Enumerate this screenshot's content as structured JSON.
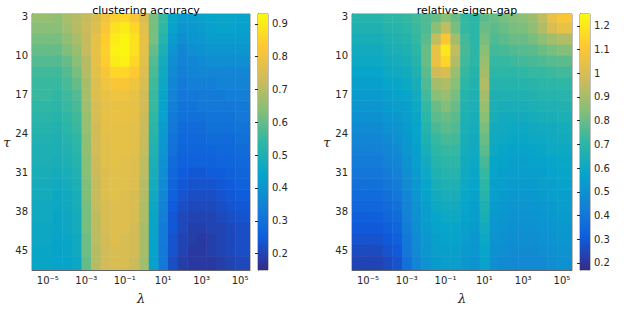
{
  "chart_data": [
    {
      "type": "heatmap",
      "title": "clustering accuracy",
      "x_label": "λ",
      "y_label": "τ",
      "log": "x",
      "x": [
        1e-05,
        3.16e-05,
        0.0001,
        0.000316,
        0.001,
        0.00316,
        0.01,
        0.0316,
        0.1,
        0.316,
        1,
        3.16,
        10,
        31.6,
        100,
        316,
        1000,
        3160,
        10000,
        31600,
        100000
      ],
      "y": [
        3,
        5,
        7,
        9,
        11,
        13,
        15,
        17,
        19,
        21,
        23,
        25,
        27,
        29,
        31,
        33,
        35,
        37,
        39,
        41,
        43,
        45,
        47
      ],
      "xlim": [
        1.5e-06,
        330000
      ],
      "ylim": [
        2.5,
        48.5
      ],
      "xticks": [
        {
          "value": 1e-05,
          "label": "10⁻⁵"
        },
        {
          "value": 0.001,
          "label": "10⁻³"
        },
        {
          "value": 0.1,
          "label": "10⁻¹"
        },
        {
          "value": 10,
          "label": "10¹"
        },
        {
          "value": 1000,
          "label": "10³"
        },
        {
          "value": 100000,
          "label": "10⁵"
        }
      ],
      "yticks": [
        3,
        10,
        17,
        24,
        31,
        38,
        45
      ],
      "cells": [
        [
          0.66,
          0.65,
          0.68,
          0.7,
          0.72,
          0.75,
          0.8,
          0.85,
          0.86,
          0.82,
          0.75,
          0.62,
          0.55,
          0.45,
          0.42,
          0.42,
          0.43,
          0.44,
          0.45,
          0.45,
          0.44
        ],
        [
          0.64,
          0.64,
          0.67,
          0.7,
          0.73,
          0.76,
          0.82,
          0.88,
          0.9,
          0.86,
          0.77,
          0.62,
          0.54,
          0.44,
          0.4,
          0.41,
          0.42,
          0.43,
          0.44,
          0.44,
          0.43
        ],
        [
          0.62,
          0.62,
          0.65,
          0.68,
          0.72,
          0.78,
          0.84,
          0.9,
          0.92,
          0.88,
          0.78,
          0.62,
          0.52,
          0.42,
          0.38,
          0.4,
          0.41,
          0.42,
          0.42,
          0.42,
          0.42
        ],
        [
          0.6,
          0.6,
          0.63,
          0.66,
          0.72,
          0.78,
          0.85,
          0.91,
          0.92,
          0.88,
          0.78,
          0.6,
          0.5,
          0.4,
          0.36,
          0.38,
          0.39,
          0.4,
          0.4,
          0.4,
          0.4
        ],
        [
          0.58,
          0.58,
          0.6,
          0.64,
          0.7,
          0.78,
          0.84,
          0.9,
          0.91,
          0.86,
          0.77,
          0.58,
          0.48,
          0.38,
          0.35,
          0.36,
          0.37,
          0.38,
          0.38,
          0.38,
          0.38
        ],
        [
          0.56,
          0.56,
          0.58,
          0.62,
          0.7,
          0.77,
          0.82,
          0.86,
          0.86,
          0.83,
          0.76,
          0.57,
          0.47,
          0.37,
          0.34,
          0.35,
          0.36,
          0.36,
          0.36,
          0.36,
          0.36
        ],
        [
          0.55,
          0.55,
          0.57,
          0.6,
          0.68,
          0.76,
          0.8,
          0.82,
          0.82,
          0.8,
          0.75,
          0.56,
          0.46,
          0.36,
          0.33,
          0.34,
          0.34,
          0.34,
          0.35,
          0.35,
          0.35
        ],
        [
          0.55,
          0.54,
          0.56,
          0.58,
          0.68,
          0.76,
          0.79,
          0.8,
          0.8,
          0.79,
          0.74,
          0.55,
          0.45,
          0.35,
          0.32,
          0.32,
          0.33,
          0.33,
          0.33,
          0.34,
          0.34
        ],
        [
          0.54,
          0.53,
          0.55,
          0.57,
          0.67,
          0.75,
          0.78,
          0.79,
          0.79,
          0.78,
          0.74,
          0.55,
          0.44,
          0.34,
          0.31,
          0.31,
          0.32,
          0.32,
          0.32,
          0.32,
          0.33
        ],
        [
          0.53,
          0.52,
          0.54,
          0.56,
          0.66,
          0.75,
          0.78,
          0.79,
          0.79,
          0.78,
          0.73,
          0.54,
          0.43,
          0.33,
          0.3,
          0.3,
          0.3,
          0.31,
          0.31,
          0.31,
          0.32
        ],
        [
          0.52,
          0.51,
          0.53,
          0.55,
          0.66,
          0.74,
          0.78,
          0.78,
          0.78,
          0.77,
          0.73,
          0.53,
          0.42,
          0.32,
          0.29,
          0.29,
          0.29,
          0.3,
          0.3,
          0.3,
          0.31
        ],
        [
          0.51,
          0.5,
          0.52,
          0.54,
          0.65,
          0.74,
          0.77,
          0.78,
          0.78,
          0.77,
          0.72,
          0.52,
          0.41,
          0.31,
          0.28,
          0.28,
          0.28,
          0.29,
          0.29,
          0.29,
          0.3
        ],
        [
          0.5,
          0.5,
          0.51,
          0.53,
          0.65,
          0.74,
          0.77,
          0.78,
          0.78,
          0.77,
          0.72,
          0.51,
          0.4,
          0.3,
          0.27,
          0.27,
          0.27,
          0.27,
          0.28,
          0.28,
          0.29
        ],
        [
          0.5,
          0.49,
          0.5,
          0.52,
          0.64,
          0.73,
          0.77,
          0.78,
          0.77,
          0.76,
          0.71,
          0.5,
          0.39,
          0.29,
          0.26,
          0.26,
          0.26,
          0.26,
          0.27,
          0.27,
          0.28
        ],
        [
          0.49,
          0.48,
          0.49,
          0.51,
          0.64,
          0.73,
          0.76,
          0.77,
          0.77,
          0.76,
          0.71,
          0.49,
          0.38,
          0.28,
          0.25,
          0.24,
          0.24,
          0.25,
          0.25,
          0.26,
          0.27
        ],
        [
          0.48,
          0.47,
          0.48,
          0.5,
          0.63,
          0.72,
          0.76,
          0.77,
          0.77,
          0.76,
          0.7,
          0.48,
          0.37,
          0.27,
          0.24,
          0.23,
          0.23,
          0.23,
          0.24,
          0.25,
          0.26
        ],
        [
          0.48,
          0.46,
          0.47,
          0.49,
          0.63,
          0.72,
          0.76,
          0.77,
          0.76,
          0.75,
          0.7,
          0.47,
          0.36,
          0.26,
          0.23,
          0.22,
          0.22,
          0.22,
          0.23,
          0.24,
          0.25
        ],
        [
          0.47,
          0.46,
          0.47,
          0.49,
          0.62,
          0.72,
          0.75,
          0.76,
          0.76,
          0.75,
          0.69,
          0.46,
          0.35,
          0.25,
          0.22,
          0.21,
          0.21,
          0.21,
          0.22,
          0.23,
          0.24
        ],
        [
          0.47,
          0.45,
          0.46,
          0.48,
          0.62,
          0.71,
          0.75,
          0.76,
          0.76,
          0.75,
          0.69,
          0.45,
          0.34,
          0.24,
          0.21,
          0.2,
          0.2,
          0.2,
          0.21,
          0.22,
          0.23
        ],
        [
          0.46,
          0.45,
          0.46,
          0.48,
          0.62,
          0.71,
          0.75,
          0.76,
          0.76,
          0.74,
          0.68,
          0.45,
          0.33,
          0.24,
          0.21,
          0.19,
          0.19,
          0.2,
          0.2,
          0.21,
          0.22
        ],
        [
          0.46,
          0.44,
          0.45,
          0.47,
          0.61,
          0.71,
          0.74,
          0.76,
          0.75,
          0.74,
          0.68,
          0.44,
          0.33,
          0.23,
          0.2,
          0.19,
          0.18,
          0.19,
          0.2,
          0.21,
          0.22
        ],
        [
          0.45,
          0.44,
          0.45,
          0.47,
          0.61,
          0.7,
          0.74,
          0.75,
          0.75,
          0.74,
          0.68,
          0.44,
          0.32,
          0.23,
          0.2,
          0.18,
          0.18,
          0.19,
          0.2,
          0.21,
          0.22
        ],
        [
          0.45,
          0.44,
          0.44,
          0.46,
          0.6,
          0.7,
          0.74,
          0.75,
          0.75,
          0.73,
          0.67,
          0.43,
          0.32,
          0.22,
          0.19,
          0.18,
          0.18,
          0.18,
          0.19,
          0.2,
          0.21
        ]
      ],
      "colorbar_range": [
        0.15,
        0.93
      ],
      "colorbar_ticks": [
        0.2,
        0.3,
        0.4,
        0.5,
        0.6,
        0.7,
        0.8,
        0.9
      ]
    },
    {
      "type": "heatmap",
      "title": "relative-eigen-gap",
      "x_label": "λ",
      "y_label": "τ",
      "log": "x",
      "x": [
        1e-05,
        3.16e-05,
        0.0001,
        0.000316,
        0.001,
        0.00316,
        0.01,
        0.0316,
        0.1,
        0.316,
        1,
        3.16,
        10,
        31.6,
        100,
        316,
        1000,
        3160,
        10000,
        31600,
        100000
      ],
      "y": [
        3,
        5,
        7,
        9,
        11,
        13,
        15,
        17,
        19,
        21,
        23,
        25,
        27,
        29,
        31,
        33,
        35,
        37,
        39,
        41,
        43,
        45,
        47
      ],
      "xlim": [
        1.5e-06,
        330000
      ],
      "ylim": [
        2.5,
        48.5
      ],
      "xticks": [
        {
          "value": 1e-05,
          "label": "10⁻⁵"
        },
        {
          "value": 0.001,
          "label": "10⁻³"
        },
        {
          "value": 0.1,
          "label": "10⁻¹"
        },
        {
          "value": 10,
          "label": "10¹"
        },
        {
          "value": 1000,
          "label": "10³"
        },
        {
          "value": 100000,
          "label": "10⁵"
        }
      ],
      "yticks": [
        3,
        10,
        17,
        24,
        31,
        38,
        45
      ],
      "cells": [
        [
          0.68,
          0.68,
          0.7,
          0.7,
          0.72,
          0.74,
          0.76,
          0.8,
          0.85,
          0.8,
          0.72,
          0.7,
          0.78,
          0.8,
          0.82,
          0.84,
          0.85,
          0.88,
          0.95,
          1.05,
          1.1
        ],
        [
          0.66,
          0.66,
          0.68,
          0.69,
          0.7,
          0.73,
          0.76,
          0.85,
          0.95,
          0.82,
          0.72,
          0.7,
          0.8,
          0.78,
          0.8,
          0.82,
          0.83,
          0.86,
          0.92,
          1.0,
          1.05
        ],
        [
          0.64,
          0.64,
          0.66,
          0.67,
          0.68,
          0.72,
          0.78,
          0.95,
          1.1,
          0.9,
          0.74,
          0.7,
          0.82,
          0.76,
          0.78,
          0.8,
          0.8,
          0.82,
          0.86,
          0.9,
          0.92
        ],
        [
          0.62,
          0.62,
          0.64,
          0.65,
          0.66,
          0.7,
          0.8,
          1.05,
          1.2,
          0.95,
          0.75,
          0.7,
          0.85,
          0.74,
          0.75,
          0.76,
          0.77,
          0.78,
          0.8,
          0.82,
          0.84
        ],
        [
          0.6,
          0.6,
          0.62,
          0.63,
          0.64,
          0.68,
          0.8,
          1.05,
          1.15,
          0.92,
          0.74,
          0.7,
          0.88,
          0.72,
          0.72,
          0.73,
          0.74,
          0.75,
          0.76,
          0.77,
          0.78
        ],
        [
          0.58,
          0.58,
          0.6,
          0.61,
          0.62,
          0.66,
          0.78,
          0.98,
          1.0,
          0.88,
          0.72,
          0.68,
          0.9,
          0.7,
          0.7,
          0.7,
          0.71,
          0.72,
          0.72,
          0.73,
          0.74
        ],
        [
          0.56,
          0.56,
          0.58,
          0.59,
          0.6,
          0.64,
          0.76,
          0.9,
          0.92,
          0.85,
          0.7,
          0.67,
          0.92,
          0.68,
          0.68,
          0.68,
          0.68,
          0.69,
          0.7,
          0.7,
          0.71
        ],
        [
          0.54,
          0.54,
          0.56,
          0.57,
          0.58,
          0.62,
          0.74,
          0.85,
          0.88,
          0.82,
          0.68,
          0.66,
          0.9,
          0.66,
          0.66,
          0.66,
          0.66,
          0.67,
          0.68,
          0.68,
          0.69
        ],
        [
          0.52,
          0.52,
          0.54,
          0.55,
          0.56,
          0.6,
          0.72,
          0.8,
          0.84,
          0.8,
          0.67,
          0.65,
          0.88,
          0.65,
          0.64,
          0.64,
          0.64,
          0.65,
          0.66,
          0.66,
          0.67
        ],
        [
          0.5,
          0.5,
          0.52,
          0.53,
          0.55,
          0.59,
          0.7,
          0.78,
          0.8,
          0.78,
          0.66,
          0.64,
          0.85,
          0.64,
          0.62,
          0.62,
          0.62,
          0.63,
          0.64,
          0.64,
          0.65
        ],
        [
          0.48,
          0.48,
          0.5,
          0.51,
          0.54,
          0.58,
          0.68,
          0.75,
          0.78,
          0.76,
          0.65,
          0.63,
          0.82,
          0.62,
          0.61,
          0.6,
          0.6,
          0.61,
          0.62,
          0.62,
          0.63
        ],
        [
          0.46,
          0.46,
          0.48,
          0.5,
          0.53,
          0.57,
          0.66,
          0.72,
          0.75,
          0.74,
          0.64,
          0.62,
          0.8,
          0.61,
          0.6,
          0.59,
          0.59,
          0.6,
          0.6,
          0.61,
          0.62
        ],
        [
          0.44,
          0.44,
          0.46,
          0.48,
          0.52,
          0.56,
          0.64,
          0.7,
          0.72,
          0.72,
          0.63,
          0.61,
          0.78,
          0.6,
          0.58,
          0.57,
          0.57,
          0.58,
          0.59,
          0.6,
          0.6
        ],
        [
          0.42,
          0.42,
          0.44,
          0.46,
          0.5,
          0.55,
          0.62,
          0.68,
          0.7,
          0.7,
          0.62,
          0.6,
          0.75,
          0.58,
          0.57,
          0.56,
          0.56,
          0.57,
          0.57,
          0.58,
          0.59
        ],
        [
          0.4,
          0.4,
          0.42,
          0.44,
          0.49,
          0.54,
          0.6,
          0.66,
          0.68,
          0.68,
          0.61,
          0.59,
          0.72,
          0.57,
          0.56,
          0.55,
          0.55,
          0.55,
          0.56,
          0.57,
          0.58
        ],
        [
          0.38,
          0.38,
          0.4,
          0.42,
          0.48,
          0.53,
          0.58,
          0.64,
          0.66,
          0.66,
          0.6,
          0.58,
          0.7,
          0.56,
          0.55,
          0.54,
          0.54,
          0.54,
          0.55,
          0.56,
          0.57
        ],
        [
          0.36,
          0.36,
          0.38,
          0.4,
          0.46,
          0.52,
          0.57,
          0.62,
          0.64,
          0.64,
          0.59,
          0.57,
          0.68,
          0.55,
          0.54,
          0.53,
          0.53,
          0.53,
          0.54,
          0.55,
          0.56
        ],
        [
          0.34,
          0.34,
          0.36,
          0.38,
          0.45,
          0.51,
          0.56,
          0.6,
          0.62,
          0.62,
          0.58,
          0.56,
          0.66,
          0.54,
          0.53,
          0.52,
          0.52,
          0.52,
          0.53,
          0.54,
          0.55
        ],
        [
          0.32,
          0.32,
          0.34,
          0.36,
          0.44,
          0.5,
          0.55,
          0.58,
          0.6,
          0.6,
          0.57,
          0.55,
          0.64,
          0.53,
          0.52,
          0.51,
          0.51,
          0.51,
          0.52,
          0.53,
          0.54
        ],
        [
          0.3,
          0.3,
          0.32,
          0.34,
          0.42,
          0.49,
          0.54,
          0.57,
          0.58,
          0.58,
          0.56,
          0.54,
          0.62,
          0.52,
          0.51,
          0.5,
          0.5,
          0.5,
          0.51,
          0.52,
          0.53
        ],
        [
          0.28,
          0.28,
          0.3,
          0.32,
          0.41,
          0.48,
          0.53,
          0.56,
          0.57,
          0.57,
          0.55,
          0.53,
          0.6,
          0.51,
          0.5,
          0.49,
          0.49,
          0.49,
          0.5,
          0.51,
          0.52
        ],
        [
          0.26,
          0.26,
          0.28,
          0.3,
          0.4,
          0.47,
          0.52,
          0.55,
          0.56,
          0.56,
          0.54,
          0.52,
          0.58,
          0.5,
          0.49,
          0.48,
          0.48,
          0.48,
          0.49,
          0.5,
          0.51
        ],
        [
          0.24,
          0.24,
          0.26,
          0.28,
          0.38,
          0.46,
          0.51,
          0.54,
          0.55,
          0.55,
          0.53,
          0.51,
          0.57,
          0.49,
          0.48,
          0.47,
          0.47,
          0.47,
          0.48,
          0.49,
          0.5
        ]
      ],
      "colorbar_range": [
        0.17,
        1.25
      ],
      "colorbar_ticks": [
        0.2,
        0.3,
        0.4,
        0.5,
        0.6,
        0.7,
        0.8,
        0.9,
        1,
        1.1,
        1.2
      ]
    }
  ]
}
